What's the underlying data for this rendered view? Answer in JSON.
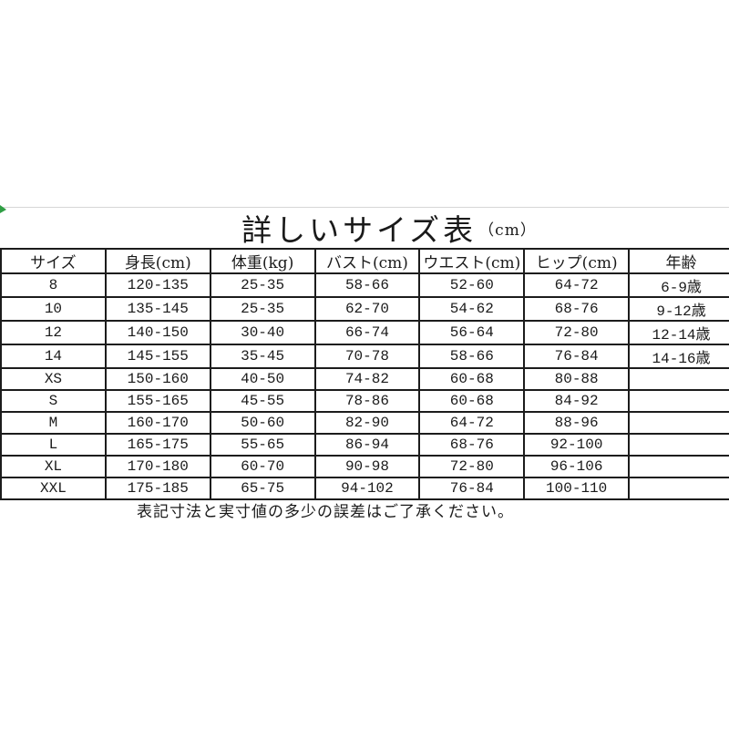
{
  "page": {
    "title": "詳しいサイズ表",
    "title_unit": "（cm）",
    "footer_note": "表記寸法と実寸値の多少の誤差はご了承ください。",
    "colors": {
      "background": "#ffffff",
      "text": "#1a1a1a",
      "table_border": "#1c1c1c",
      "top_divider": "#d6d6d6",
      "corner_mark_green": "#2f9e44"
    }
  },
  "size_table": {
    "columns": [
      "サイズ",
      "身長(cm)",
      "体重(kg)",
      "バスト(cm)",
      "ウエスト(cm)",
      "ヒップ(cm)",
      "年齢"
    ],
    "rows": [
      [
        "8",
        "120-135",
        "25-35",
        "58-66",
        "52-60",
        "64-72",
        "6-9歳"
      ],
      [
        "10",
        "135-145",
        "25-35",
        "62-70",
        "54-62",
        "68-76",
        "9-12歳"
      ],
      [
        "12",
        "140-150",
        "30-40",
        "66-74",
        "56-64",
        "72-80",
        "12-14歳"
      ],
      [
        "14",
        "145-155",
        "35-45",
        "70-78",
        "58-66",
        "76-84",
        "14-16歳"
      ],
      [
        "XS",
        "150-160",
        "40-50",
        "74-82",
        "60-68",
        "80-88",
        ""
      ],
      [
        "S",
        "155-165",
        "45-55",
        "78-86",
        "60-68",
        "84-92",
        ""
      ],
      [
        "M",
        "160-170",
        "50-60",
        "82-90",
        "64-72",
        "88-96",
        ""
      ],
      [
        "L",
        "165-175",
        "55-65",
        "86-94",
        "68-76",
        "92-100",
        ""
      ],
      [
        "XL",
        "170-180",
        "60-70",
        "90-98",
        "72-80",
        "96-106",
        ""
      ],
      [
        "XXL",
        "175-185",
        "65-75",
        "94-102",
        "76-84",
        "100-110",
        ""
      ]
    ]
  }
}
